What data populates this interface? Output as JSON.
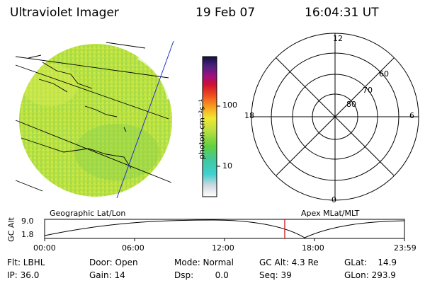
{
  "header": {
    "title": "Ultraviolet Imager",
    "date": "19 Feb 07",
    "time": "16:04:31 UT"
  },
  "colorbar": {
    "unit_label": "photon cm⁻²s⁻¹",
    "ticks": [
      "100",
      "10"
    ],
    "scale": "log"
  },
  "polar_plot": {
    "mlt_labels": {
      "top": "12",
      "right": "6",
      "bottom": "0",
      "left": "18"
    },
    "lat_labels": [
      "60",
      "70",
      "80"
    ]
  },
  "timeline": {
    "left_title": "Geographic Lat/Lon",
    "right_title": "Apex MLat/MLT",
    "axis_label": "GC Alt",
    "y_ticks": [
      "9.0",
      "1.8"
    ],
    "x_ticks": [
      "00:00",
      "06:00",
      "12:00",
      "18:00",
      "23:59"
    ],
    "marker_time": "16:04",
    "marker_color": "#cc0000"
  },
  "footer": {
    "flt": "Flt: LBHL",
    "ip": "IP: 36.0",
    "door": "Door: Open",
    "gain": "Gain: 14",
    "mode": "Mode: Normal",
    "dsp": "Dsp:        0.0",
    "gcalt": "GC Alt: 4.3 Re",
    "seq": "Seq: 39",
    "glat": "GLat:    14.9",
    "glon": "GLon: 293.9"
  },
  "colors": {
    "image_fill": "#b7e23a",
    "image_fill_light": "#cfe84a",
    "image_fill_green": "#8fd24a"
  }
}
